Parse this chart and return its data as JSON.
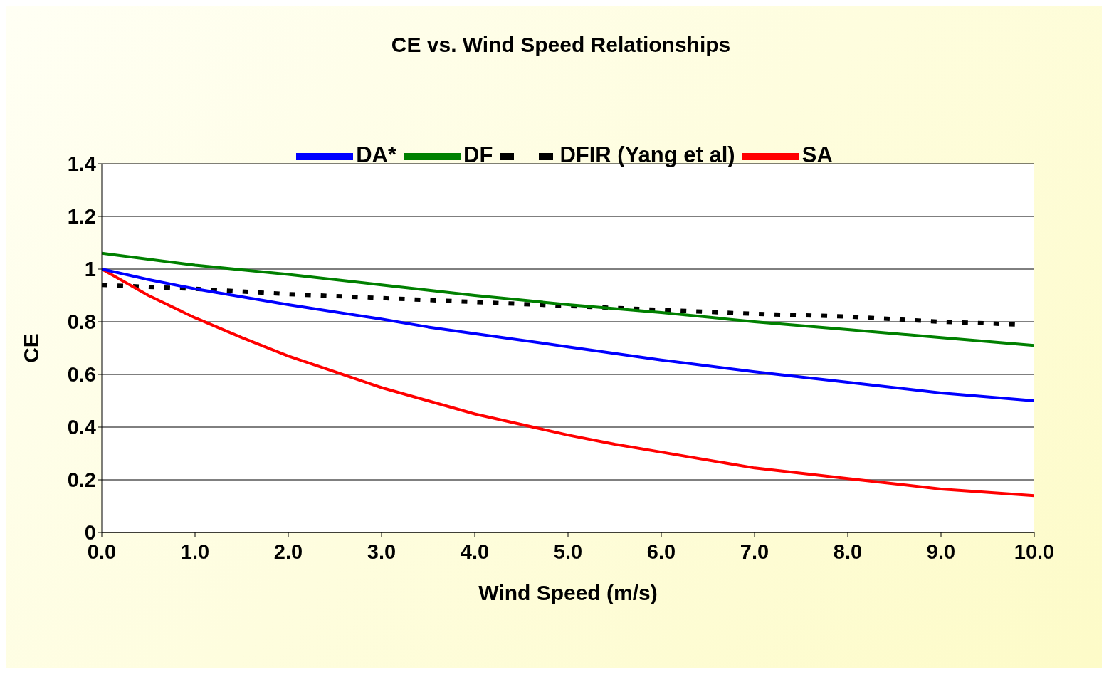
{
  "chart_data": {
    "type": "line",
    "title": "CE vs. Wind Speed Relationships",
    "xlabel": "Wind Speed (m/s)",
    "ylabel": "CE",
    "xlim": [
      0,
      10
    ],
    "xticks": [
      {
        "value": 0,
        "label": "0.0"
      },
      {
        "value": 1,
        "label": "1.0"
      },
      {
        "value": 2,
        "label": "2.0"
      },
      {
        "value": 3,
        "label": "3.0"
      },
      {
        "value": 4,
        "label": "4.0"
      },
      {
        "value": 5,
        "label": "5.0"
      },
      {
        "value": 6,
        "label": "6.0"
      },
      {
        "value": 7,
        "label": "7.0"
      },
      {
        "value": 8,
        "label": "8.0"
      },
      {
        "value": 9,
        "label": "9.0"
      },
      {
        "value": 10,
        "label": "10.0"
      }
    ],
    "ylim": [
      0,
      1.4
    ],
    "yticks": [
      0,
      0.2,
      0.4,
      0.6,
      0.8,
      1,
      1.2,
      1.4
    ],
    "grid": "y",
    "legend": "top",
    "marker": "none",
    "series": [
      {
        "name": "DFIR (Yang et al)",
        "color": "#000000",
        "line_style": "dashed",
        "x": [
          0,
          1,
          2,
          3,
          4,
          5,
          6,
          7,
          8,
          9,
          9.8
        ],
        "values": [
          0.94,
          0.925,
          0.905,
          0.89,
          0.875,
          0.86,
          0.845,
          0.83,
          0.82,
          0.8,
          0.79
        ]
      },
      {
        "name": "DF",
        "color": "#008000",
        "line_style": "solid",
        "x": [
          0,
          1,
          2,
          3,
          4,
          5,
          6,
          7,
          8,
          9,
          10
        ],
        "values": [
          1.06,
          1.015,
          0.98,
          0.94,
          0.9,
          0.865,
          0.835,
          0.8,
          0.77,
          0.74,
          0.71
        ]
      },
      {
        "name": "SA",
        "color": "#ff0000",
        "line_style": "solid",
        "x": [
          0,
          0.5,
          1,
          1.5,
          2,
          3,
          4,
          5,
          5.5,
          6,
          7,
          8,
          9,
          10
        ],
        "values": [
          1.0,
          0.9,
          0.815,
          0.74,
          0.67,
          0.55,
          0.45,
          0.37,
          0.335,
          0.305,
          0.245,
          0.205,
          0.165,
          0.14
        ]
      },
      {
        "name": "DA*",
        "color": "#0000ff",
        "line_style": "solid",
        "x": [
          0,
          0.5,
          1,
          2,
          3,
          3.5,
          4,
          5,
          6,
          7,
          8,
          9,
          10
        ],
        "values": [
          1.0,
          0.96,
          0.925,
          0.865,
          0.81,
          0.78,
          0.755,
          0.705,
          0.655,
          0.61,
          0.57,
          0.53,
          0.5
        ]
      }
    ]
  }
}
